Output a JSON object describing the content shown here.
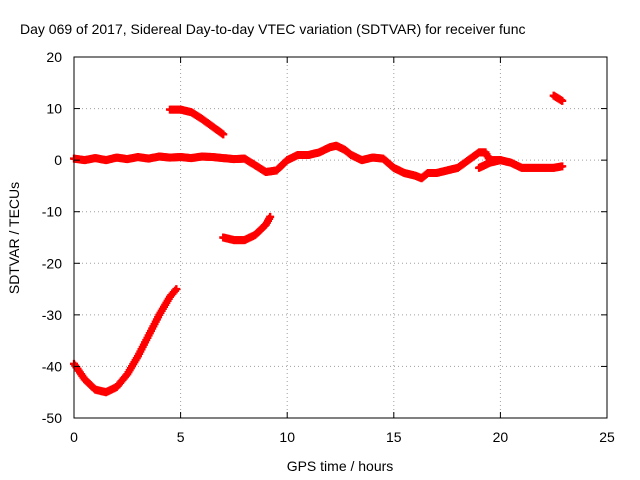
{
  "chart_data": {
    "type": "scatter",
    "title": "Day 069 of 2017, Sidereal Day-to-day VTEC variation (SDTVAR) for receiver func",
    "xlabel": "GPS time / hours",
    "ylabel": "SDTVAR / TECUs",
    "xlim": [
      0,
      25
    ],
    "ylim": [
      -50,
      20
    ],
    "xticks": [
      0,
      5,
      10,
      15,
      20,
      25
    ],
    "yticks": [
      -50,
      -40,
      -30,
      -20,
      -10,
      0,
      10,
      20
    ],
    "xtick_labels": [
      "0",
      "5",
      "10",
      "15",
      "20",
      "25"
    ],
    "ytick_labels": [
      "-50",
      "-40",
      "-30",
      "-20",
      "-10",
      "0",
      "10",
      "20"
    ],
    "grid": true,
    "marker_color": "#ff0000",
    "series": [
      {
        "name": "main",
        "points": [
          [
            0,
            0.3
          ],
          [
            0.5,
            0
          ],
          [
            1,
            0.4
          ],
          [
            1.5,
            0
          ],
          [
            2,
            0.5
          ],
          [
            2.5,
            0.2
          ],
          [
            3,
            0.6
          ],
          [
            3.5,
            0.3
          ],
          [
            4,
            0.7
          ],
          [
            4.5,
            0.5
          ],
          [
            5,
            0.6
          ],
          [
            5.5,
            0.4
          ],
          [
            6,
            0.7
          ],
          [
            6.5,
            0.6
          ],
          [
            7,
            0.4
          ],
          [
            7.5,
            0.2
          ],
          [
            8,
            0.3
          ],
          [
            8.5,
            -1
          ],
          [
            9,
            -2.3
          ],
          [
            9.5,
            -2
          ],
          [
            10,
            0
          ],
          [
            10.5,
            1
          ],
          [
            11,
            1
          ],
          [
            11.5,
            1.5
          ],
          [
            12,
            2.5
          ],
          [
            12.3,
            2.8
          ],
          [
            12.7,
            2
          ],
          [
            13,
            1
          ],
          [
            13.5,
            0
          ],
          [
            14,
            0.5
          ],
          [
            14.5,
            0.3
          ],
          [
            15,
            -1.5
          ],
          [
            15.5,
            -2.5
          ],
          [
            16,
            -3
          ],
          [
            16.3,
            -3.5
          ],
          [
            16.6,
            -2.5
          ],
          [
            17,
            -2.5
          ],
          [
            17.5,
            -2
          ],
          [
            18,
            -1.5
          ],
          [
            18.5,
            0
          ],
          [
            19,
            1.5
          ],
          [
            19.3,
            1.5
          ],
          [
            19.5,
            0
          ],
          [
            20,
            0
          ],
          [
            20.5,
            -0.5
          ],
          [
            21,
            -1.5
          ],
          [
            21.5,
            -1.5
          ],
          [
            22,
            -1.5
          ],
          [
            22.5,
            -1.5
          ],
          [
            22.9,
            -1.2
          ]
        ]
      },
      {
        "name": "branch-19",
        "points": [
          [
            19,
            -1.5
          ],
          [
            19.5,
            -0.5
          ],
          [
            20,
            0
          ]
        ]
      },
      {
        "name": "arc-upper",
        "points": [
          [
            4.5,
            9.8
          ],
          [
            5,
            9.8
          ],
          [
            5.5,
            9.3
          ],
          [
            6,
            8
          ],
          [
            6.5,
            6.5
          ],
          [
            7,
            5
          ]
        ]
      },
      {
        "name": "arc-lower",
        "points": [
          [
            7,
            -15
          ],
          [
            7.5,
            -15.5
          ],
          [
            8,
            -15.5
          ],
          [
            8.5,
            -14.5
          ],
          [
            9,
            -12.5
          ],
          [
            9.2,
            -11
          ]
        ]
      },
      {
        "name": "u-curve",
        "points": [
          [
            0,
            -39.5
          ],
          [
            0.5,
            -42.5
          ],
          [
            1,
            -44.5
          ],
          [
            1.5,
            -45
          ],
          [
            2,
            -44
          ],
          [
            2.5,
            -41.5
          ],
          [
            3,
            -38
          ],
          [
            3.5,
            -34
          ],
          [
            4,
            -30
          ],
          [
            4.5,
            -26.5
          ],
          [
            4.8,
            -25
          ]
        ]
      },
      {
        "name": "tail",
        "points": [
          [
            22.5,
            12.5
          ],
          [
            22.9,
            11.5
          ]
        ]
      }
    ]
  }
}
